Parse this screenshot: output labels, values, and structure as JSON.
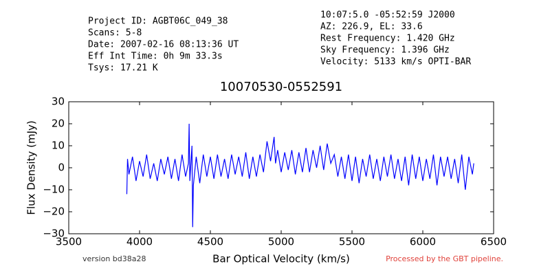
{
  "header": {
    "left": [
      "Project ID: AGBT06C_049_38",
      "Scans: 5-8",
      "Date: 2007-02-16 08:13:36 UT",
      "Eff Int Time: 0h 9m 33.3s",
      "Tsys: 17.21 K"
    ],
    "right": [
      "10:07:5.0 -05:52:59 J2000",
      "AZ: 226.9, EL: 33.6",
      "Rest Frequency:   1.420 GHz",
      "Sky Frequency:    1.396 GHz",
      "Velocity: 5133 km/s OPTI-BAR"
    ]
  },
  "footer": {
    "version": "version bd38a28",
    "pipeline": "Processed by the GBT pipeline."
  },
  "chart_data": {
    "type": "line",
    "title": "10070530-0552591",
    "xlabel": "Bar Optical Velocity (km/s)",
    "ylabel": "Flux Density (mJy)",
    "color": "#0000ff",
    "x": [
      3910,
      3915,
      3925,
      3950,
      3975,
      4000,
      4025,
      4050,
      4075,
      4100,
      4125,
      4150,
      4175,
      4200,
      4225,
      4250,
      4275,
      4300,
      4325,
      4345,
      4350,
      4355,
      4370,
      4375,
      4380,
      4400,
      4425,
      4450,
      4475,
      4500,
      4525,
      4550,
      4575,
      4600,
      4625,
      4650,
      4675,
      4700,
      4725,
      4750,
      4775,
      4800,
      4825,
      4850,
      4875,
      4900,
      4925,
      4950,
      4960,
      4975,
      5000,
      5025,
      5050,
      5075,
      5100,
      5125,
      5150,
      5175,
      5200,
      5225,
      5250,
      5275,
      5300,
      5325,
      5350,
      5375,
      5400,
      5425,
      5450,
      5475,
      5500,
      5525,
      5550,
      5575,
      5600,
      5625,
      5650,
      5675,
      5700,
      5725,
      5750,
      5775,
      5800,
      5825,
      5850,
      5875,
      5900,
      5925,
      5950,
      5975,
      6000,
      6025,
      6050,
      6075,
      6100,
      6125,
      6150,
      6175,
      6200,
      6225,
      6250,
      6275,
      6300,
      6325,
      6350,
      6360
    ],
    "values": [
      -12,
      4,
      -3,
      5,
      -6,
      3,
      -4,
      6,
      -5,
      2,
      -6,
      4,
      -3,
      5,
      -5,
      4,
      -6,
      6,
      -4,
      2,
      20,
      -6,
      10,
      -27,
      -8,
      5,
      -7,
      6,
      -4,
      5,
      -5,
      6,
      -4,
      4,
      -5,
      6,
      -3,
      5,
      -4,
      7,
      -5,
      5,
      -4,
      6,
      -2,
      12,
      3,
      14,
      2,
      8,
      -2,
      7,
      -1,
      8,
      -3,
      7,
      -2,
      9,
      -2,
      8,
      0,
      10,
      -1,
      11,
      2,
      6,
      -4,
      5,
      -5,
      6,
      -6,
      5,
      -7,
      4,
      -4,
      6,
      -5,
      4,
      -6,
      5,
      -4,
      6,
      -5,
      4,
      -6,
      5,
      -8,
      6,
      -5,
      5,
      -6,
      4,
      -5,
      6,
      -8,
      5,
      -4,
      5,
      -5,
      4,
      -7,
      6,
      -10,
      5,
      -3,
      2
    ],
    "xlim": [
      3500,
      6500
    ],
    "xticks": [
      3500,
      4000,
      4500,
      5000,
      5500,
      6000,
      6500
    ],
    "ylim": [
      -30,
      30
    ],
    "yticks": [
      {
        "value": -30,
        "label": "−30"
      },
      {
        "value": -20,
        "label": "−20"
      },
      {
        "value": -10,
        "label": "−10"
      },
      0,
      10,
      20,
      30
    ]
  }
}
